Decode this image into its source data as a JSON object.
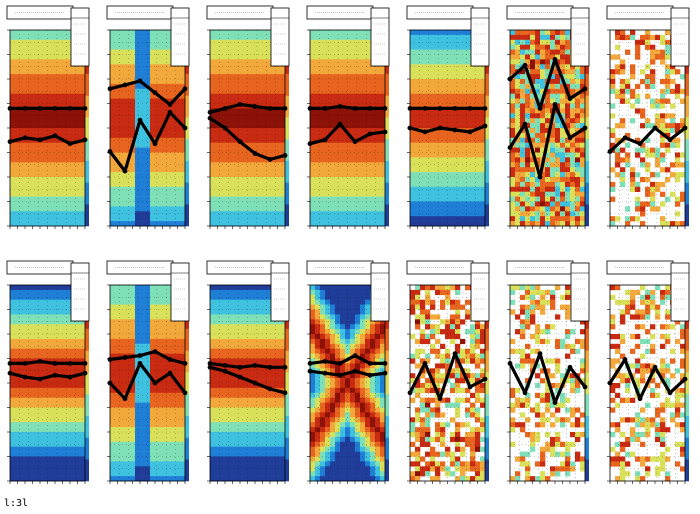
{
  "footer": {
    "text": "l:3l"
  },
  "colors": {
    "palette": [
      "#1f3d99",
      "#1f7fd6",
      "#3fc1e0",
      "#7fe0b8",
      "#d9e05a",
      "#f2a83a",
      "#e8651f",
      "#c92a12",
      "#8c1208"
    ],
    "curve": "#000000",
    "frame": "#000000",
    "background": "#ffffff"
  },
  "chart_data": [
    {
      "type": "heatmap",
      "panel": "row1-col1",
      "pattern": "smooth",
      "curves": [
        [
          0.4,
          0.4,
          0.4,
          0.4,
          0.4,
          0.4
        ],
        [
          0.57,
          0.55,
          0.56,
          0.54,
          0.58,
          0.56
        ]
      ]
    },
    {
      "type": "heatmap",
      "panel": "row1-col2",
      "pattern": "split",
      "curves": [
        [
          0.3,
          0.28,
          0.26,
          0.32,
          0.38,
          0.3
        ],
        [
          0.62,
          0.72,
          0.46,
          0.58,
          0.42,
          0.5
        ]
      ]
    },
    {
      "type": "heatmap",
      "panel": "row1-col3",
      "pattern": "smooth",
      "curves": [
        [
          0.42,
          0.4,
          0.38,
          0.39,
          0.4,
          0.4
        ],
        [
          0.45,
          0.5,
          0.57,
          0.63,
          0.66,
          0.64
        ]
      ]
    },
    {
      "type": "heatmap",
      "panel": "row1-col4",
      "pattern": "smooth",
      "curves": [
        [
          0.4,
          0.4,
          0.39,
          0.4,
          0.4,
          0.4
        ],
        [
          0.58,
          0.56,
          0.48,
          0.57,
          0.53,
          0.52
        ]
      ]
    },
    {
      "type": "heatmap",
      "panel": "row1-col5",
      "pattern": "smooth-light",
      "curves": [
        [
          0.4,
          0.4,
          0.4,
          0.4,
          0.4,
          0.4
        ],
        [
          0.5,
          0.52,
          0.5,
          0.51,
          0.52,
          0.49
        ]
      ]
    },
    {
      "type": "heatmap",
      "panel": "row1-col6",
      "pattern": "noisy",
      "curves": [
        [
          0.25,
          0.18,
          0.4,
          0.15,
          0.35,
          0.3
        ],
        [
          0.6,
          0.48,
          0.75,
          0.38,
          0.55,
          0.5
        ]
      ]
    },
    {
      "type": "heatmap",
      "panel": "row1-col7",
      "pattern": "sparse",
      "curves": [
        [
          0.62,
          0.55,
          0.58,
          0.5,
          0.56,
          0.5
        ]
      ]
    },
    {
      "type": "heatmap",
      "panel": "row2-col1",
      "pattern": "smooth-wide",
      "curves": [
        [
          0.4,
          0.4,
          0.39,
          0.4,
          0.4,
          0.4
        ],
        [
          0.45,
          0.47,
          0.48,
          0.46,
          0.47,
          0.45
        ]
      ]
    },
    {
      "type": "heatmap",
      "panel": "row2-col2",
      "pattern": "split",
      "curves": [
        [
          0.38,
          0.37,
          0.36,
          0.34,
          0.38,
          0.4
        ],
        [
          0.5,
          0.58,
          0.4,
          0.5,
          0.45,
          0.55
        ]
      ]
    },
    {
      "type": "heatmap",
      "panel": "row2-col3",
      "pattern": "smooth-wide",
      "curves": [
        [
          0.4,
          0.41,
          0.42,
          0.41,
          0.42,
          0.42
        ],
        [
          0.42,
          0.44,
          0.47,
          0.5,
          0.53,
          0.55
        ]
      ]
    },
    {
      "type": "heatmap",
      "panel": "row2-col4",
      "pattern": "x-shape",
      "curves": [
        [
          0.4,
          0.39,
          0.4,
          0.36,
          0.4,
          0.4
        ],
        [
          0.44,
          0.45,
          0.46,
          0.44,
          0.46,
          0.45
        ]
      ]
    },
    {
      "type": "heatmap",
      "panel": "row2-col5",
      "pattern": "sparse-dense",
      "curves": [
        [
          0.55,
          0.4,
          0.58,
          0.35,
          0.52,
          0.48
        ]
      ]
    },
    {
      "type": "heatmap",
      "panel": "row2-col6",
      "pattern": "sparse",
      "curves": [
        [
          0.4,
          0.55,
          0.35,
          0.6,
          0.42,
          0.52
        ]
      ]
    },
    {
      "type": "heatmap",
      "panel": "row2-col7",
      "pattern": "sparse",
      "curves": [
        [
          0.5,
          0.38,
          0.58,
          0.42,
          0.55,
          0.48
        ]
      ]
    }
  ]
}
